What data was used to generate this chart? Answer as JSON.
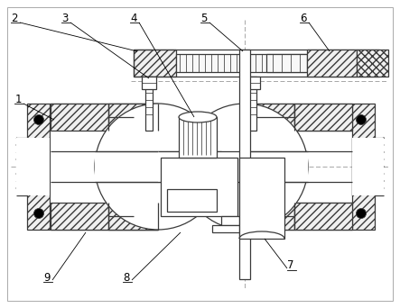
{
  "bg_color": "#ffffff",
  "line_color": "#3a3a3a",
  "fig_width": 4.43,
  "fig_height": 3.42,
  "dpi": 100,
  "label_fontsize": 8.5,
  "centerline_color": "#999999",
  "hatch_color": "#555555"
}
